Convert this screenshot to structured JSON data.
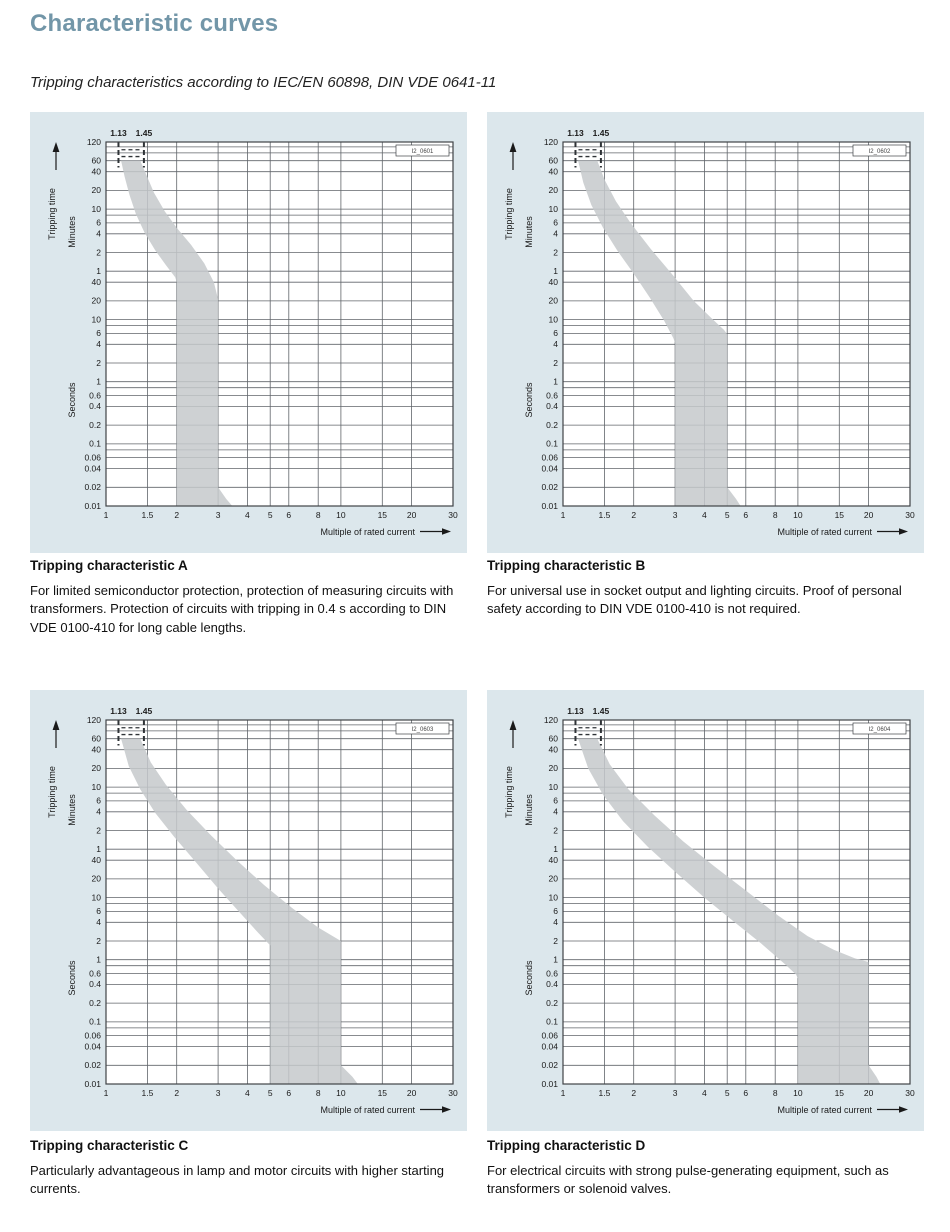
{
  "page": {
    "title": "Characteristic curves",
    "subtitle": "Tripping characteristics according to IEC/EN 60898, DIN VDE 0641-11"
  },
  "colors": {
    "title_text": "#7296a8",
    "panel_bg": "#dce7ec",
    "plot_bg": "#ffffff",
    "grid": "#60656a",
    "border": "#3f4347",
    "marker": "#2f3337",
    "band": "#c6c9cb",
    "text": "#1a1a1a"
  },
  "axes": {
    "x_label": "Multiple of rated current",
    "y_label": "Tripping time",
    "y_unit_upper": "Minutes",
    "y_unit_lower": "Seconds",
    "x_min": 1,
    "x_max": 30,
    "t_min_s": 0.01,
    "t_max_s": 7200,
    "x_ticks": [
      {
        "v": 1,
        "label": "1"
      },
      {
        "v": 1.5,
        "label": "1.5"
      },
      {
        "v": 2,
        "label": "2"
      },
      {
        "v": 3,
        "label": "3"
      },
      {
        "v": 4,
        "label": "4"
      },
      {
        "v": 5,
        "label": "5"
      },
      {
        "v": 6,
        "label": "6"
      },
      {
        "v": 8,
        "label": "8"
      },
      {
        "v": 10,
        "label": "10"
      },
      {
        "v": 15,
        "label": "15"
      },
      {
        "v": 20,
        "label": "20"
      },
      {
        "v": 30,
        "label": "30"
      }
    ],
    "y_gridlines": [
      {
        "s": 7200,
        "label": "120"
      },
      {
        "s": 6000
      },
      {
        "s": 4800
      },
      {
        "s": 3600,
        "label": "60"
      },
      {
        "s": 2400,
        "label": "40"
      },
      {
        "s": 1200,
        "label": "20"
      },
      {
        "s": 600,
        "label": "10"
      },
      {
        "s": 480
      },
      {
        "s": 360,
        "label": "6"
      },
      {
        "s": 240,
        "label": "4"
      },
      {
        "s": 120,
        "label": "2"
      },
      {
        "s": 60,
        "label": "1"
      },
      {
        "s": 40,
        "label": "40"
      },
      {
        "s": 20,
        "label": "20"
      },
      {
        "s": 10,
        "label": "10"
      },
      {
        "s": 8
      },
      {
        "s": 6,
        "label": "6"
      },
      {
        "s": 4,
        "label": "4"
      },
      {
        "s": 2,
        "label": "2"
      },
      {
        "s": 1,
        "label": "1"
      },
      {
        "s": 0.8
      },
      {
        "s": 0.6,
        "label": "0.6"
      },
      {
        "s": 0.4,
        "label": "0.4"
      },
      {
        "s": 0.2,
        "label": "0.2"
      },
      {
        "s": 0.1,
        "label": "0.1"
      },
      {
        "s": 0.08
      },
      {
        "s": 0.06,
        "label": "0.06"
      },
      {
        "s": 0.04,
        "label": "0.04"
      },
      {
        "s": 0.02,
        "label": "0.02"
      },
      {
        "s": 0.01,
        "label": "0.01"
      }
    ],
    "thresholds": [
      {
        "v": 1.13,
        "label": "1.13"
      },
      {
        "v": 1.45,
        "label": "1.45"
      }
    ]
  },
  "chart_data": [
    {
      "type": "area",
      "id": "A",
      "figure_code": "I2_0601",
      "caption_title": "Tripping characteristic A",
      "caption_text": "For limited semiconductor protection, protection of measuring circuits with transformers. Protection of circuits with tripping in 0.4 s according to DIN VDE 0100-410 for long cable lengths.",
      "magnetic_trip_range": [
        2,
        3
      ],
      "band_left": [
        [
          1.16,
          3600
        ],
        [
          1.2,
          2000
        ],
        [
          1.26,
          1000
        ],
        [
          1.34,
          500
        ],
        [
          1.46,
          250
        ],
        [
          1.62,
          130
        ],
        [
          1.8,
          75
        ],
        [
          1.97,
          48
        ],
        [
          2.0,
          40
        ],
        [
          2.0,
          0.01
        ]
      ],
      "band_right": [
        [
          1.4,
          3600
        ],
        [
          1.48,
          2200
        ],
        [
          1.6,
          1100
        ],
        [
          1.78,
          550
        ],
        [
          2.0,
          300
        ],
        [
          2.3,
          160
        ],
        [
          2.62,
          80
        ],
        [
          2.88,
          40
        ],
        [
          3.0,
          21
        ],
        [
          3.0,
          0.02
        ],
        [
          3.25,
          0.013
        ],
        [
          3.45,
          0.01
        ]
      ]
    },
    {
      "type": "area",
      "id": "B",
      "figure_code": "I2_0602",
      "caption_title": "Tripping characteristic B",
      "caption_text": "For universal use in socket output and lighting circuits. Proof of personal safety according to DIN VDE 0100-410 is not required.",
      "magnetic_trip_range": [
        3,
        5
      ],
      "band_left": [
        [
          1.16,
          3600
        ],
        [
          1.22,
          1600
        ],
        [
          1.32,
          700
        ],
        [
          1.48,
          300
        ],
        [
          1.7,
          130
        ],
        [
          2.0,
          55
        ],
        [
          2.35,
          22
        ],
        [
          2.7,
          9.5
        ],
        [
          2.95,
          5
        ],
        [
          3.0,
          4.2
        ],
        [
          3.0,
          0.01
        ]
      ],
      "band_right": [
        [
          1.4,
          3600
        ],
        [
          1.5,
          1800
        ],
        [
          1.68,
          800
        ],
        [
          1.95,
          350
        ],
        [
          2.35,
          140
        ],
        [
          2.9,
          55
        ],
        [
          3.6,
          20
        ],
        [
          4.35,
          10
        ],
        [
          4.85,
          6.8
        ],
        [
          5.0,
          5.8
        ],
        [
          5.0,
          0.02
        ],
        [
          5.45,
          0.013
        ],
        [
          5.7,
          0.01
        ]
      ]
    },
    {
      "type": "area",
      "id": "C",
      "figure_code": "I2_0603",
      "caption_title": "Tripping characteristic C",
      "caption_text": "Particularly advantageous in lamp and motor circuits with higher starting currents.",
      "magnetic_trip_range": [
        5,
        10
      ],
      "band_left": [
        [
          1.16,
          3600
        ],
        [
          1.25,
          1300
        ],
        [
          1.4,
          550
        ],
        [
          1.62,
          230
        ],
        [
          1.95,
          95
        ],
        [
          2.4,
          38
        ],
        [
          3.0,
          14
        ],
        [
          3.7,
          5.8
        ],
        [
          4.45,
          2.7
        ],
        [
          5.0,
          1.7
        ],
        [
          5.0,
          0.01
        ]
      ],
      "band_right": [
        [
          1.4,
          3600
        ],
        [
          1.55,
          1500
        ],
        [
          1.8,
          650
        ],
        [
          2.2,
          260
        ],
        [
          2.8,
          100
        ],
        [
          3.6,
          40
        ],
        [
          4.7,
          16
        ],
        [
          6.2,
          6.8
        ],
        [
          8.0,
          3.3
        ],
        [
          9.4,
          2.3
        ],
        [
          10.0,
          2.0
        ],
        [
          10.0,
          0.02
        ],
        [
          11.2,
          0.013
        ],
        [
          11.8,
          0.01
        ]
      ]
    },
    {
      "type": "area",
      "id": "D",
      "figure_code": "I2_0604",
      "caption_title": "Tripping characteristic D",
      "caption_text": "For electrical circuits with strong pulse-generating equipment, such as transformers or solenoid valves.",
      "magnetic_trip_range": [
        10,
        20
      ],
      "band_left": [
        [
          1.16,
          3600
        ],
        [
          1.28,
          1200
        ],
        [
          1.48,
          450
        ],
        [
          1.8,
          170
        ],
        [
          2.3,
          65
        ],
        [
          3.0,
          26
        ],
        [
          4.0,
          10
        ],
        [
          5.3,
          4.2
        ],
        [
          7.0,
          1.8
        ],
        [
          8.8,
          0.85
        ],
        [
          9.8,
          0.58
        ],
        [
          10.0,
          0.5
        ],
        [
          10.0,
          0.01
        ]
      ],
      "band_right": [
        [
          1.4,
          3600
        ],
        [
          1.58,
          1400
        ],
        [
          1.9,
          550
        ],
        [
          2.45,
          210
        ],
        [
          3.25,
          80
        ],
        [
          4.4,
          32
        ],
        [
          6.0,
          13
        ],
        [
          8.2,
          5.2
        ],
        [
          11.0,
          2.4
        ],
        [
          14.2,
          1.45
        ],
        [
          17.5,
          1.05
        ],
        [
          20.0,
          0.92
        ],
        [
          20.0,
          0.02
        ],
        [
          21.6,
          0.013
        ],
        [
          22.4,
          0.01
        ]
      ]
    }
  ]
}
